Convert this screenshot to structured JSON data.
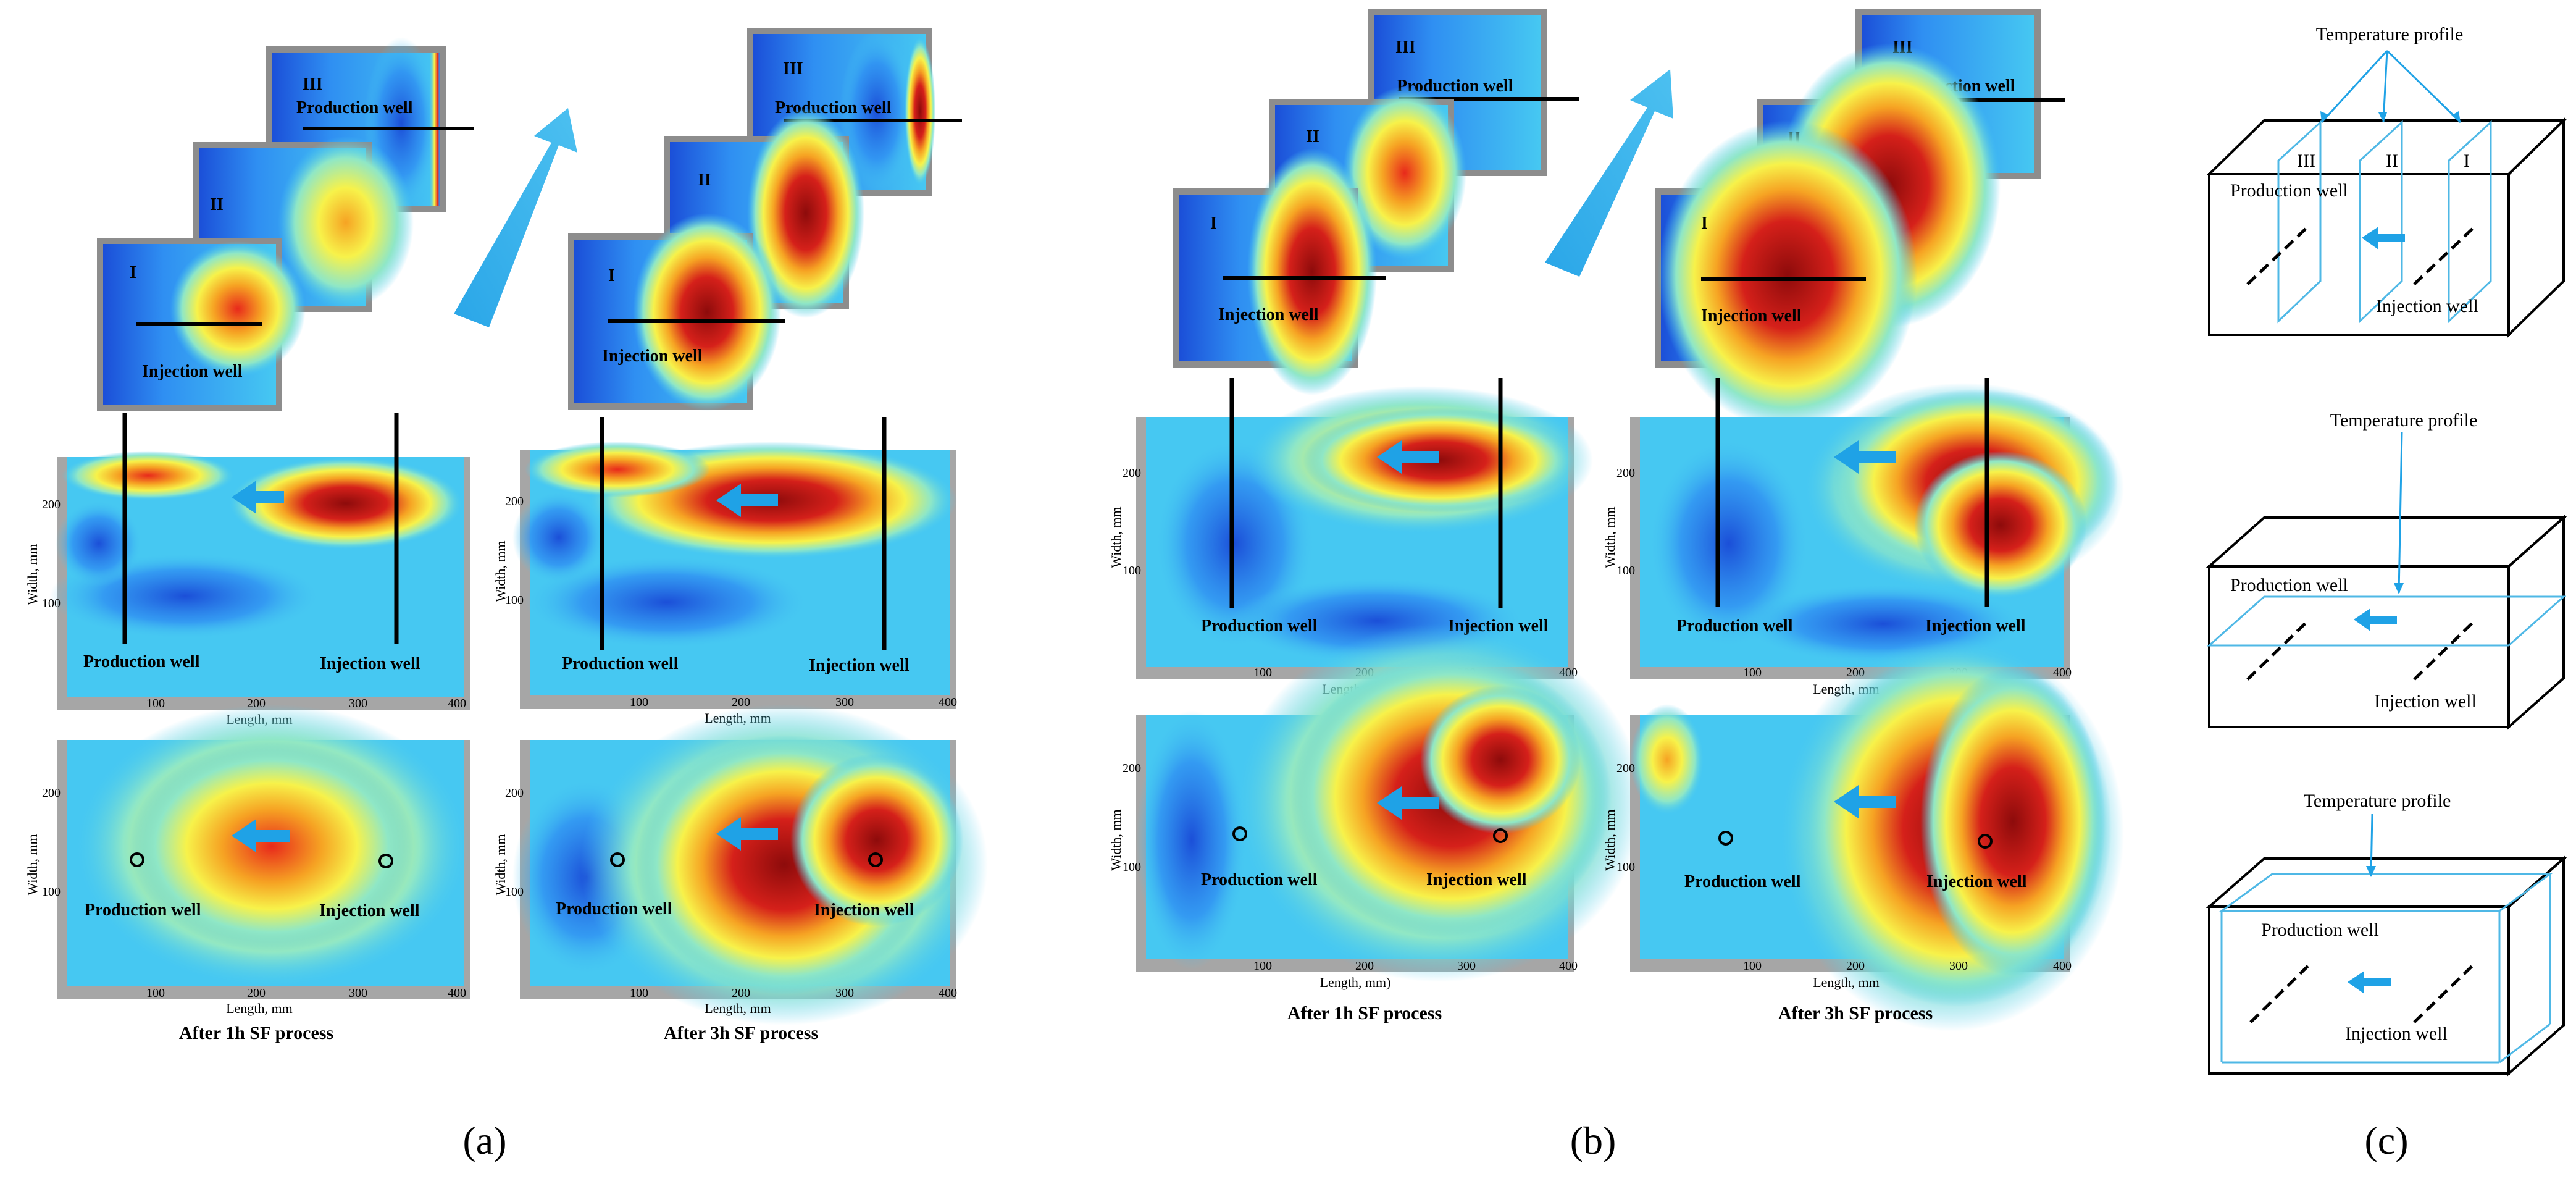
{
  "labels": {
    "production_well": "Production well",
    "injection_well": "Injection well",
    "width_axis": "Width, mm",
    "length_axis": "Length, mm",
    "length_axis_alt": "Length, mm)",
    "temperature_profile": "Temperature profile",
    "section_I": "I",
    "section_II": "II",
    "section_III": "III",
    "ticks_x": [
      "100",
      "200",
      "300",
      "400"
    ],
    "ticks_y": [
      "100",
      "200"
    ]
  },
  "captions": {
    "after_1h": "After 1h SF process",
    "after_3h": "After 3h SF process"
  },
  "panel_labels": {
    "a": "(a)",
    "b": "(b)",
    "c": "(c)"
  },
  "colors": {
    "heat_scale": [
      "#1b4fd8",
      "#2f8ff2",
      "#46c8f2",
      "#8fe7c6",
      "#f7f24a",
      "#f6a323",
      "#e8291b",
      "#8d0b0b"
    ],
    "flow_arrow": "#1fa2e6",
    "frame": "#9a9a9a",
    "profile_line": "#4fb8e6"
  }
}
